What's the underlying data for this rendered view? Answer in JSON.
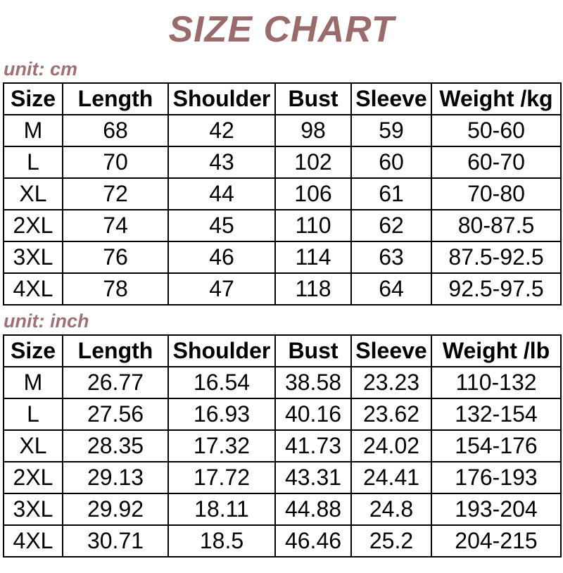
{
  "page": {
    "title": "SIZE CHART",
    "colors": {
      "accent_title": "#996b6b",
      "accent_label": "#9e7274",
      "table_text": "#000000",
      "border": "#000000",
      "background": "#ffffff"
    }
  },
  "chart_data": [
    {
      "type": "table",
      "title": "unit: cm",
      "columns": [
        "Size",
        "Length",
        "Shoulder",
        "Bust",
        "Sleeve",
        "Weight /kg"
      ],
      "rows": [
        [
          "M",
          "68",
          "42",
          "98",
          "59",
          "50-60"
        ],
        [
          "L",
          "70",
          "43",
          "102",
          "60",
          "60-70"
        ],
        [
          "XL",
          "72",
          "44",
          "106",
          "61",
          "70-80"
        ],
        [
          "2XL",
          "74",
          "45",
          "110",
          "62",
          "80-87.5"
        ],
        [
          "3XL",
          "76",
          "46",
          "114",
          "63",
          "87.5-92.5"
        ],
        [
          "4XL",
          "78",
          "47",
          "118",
          "64",
          "92.5-97.5"
        ]
      ]
    },
    {
      "type": "table",
      "title": "unit: inch",
      "columns": [
        "Size",
        "Length",
        "Shoulder",
        "Bust",
        "Sleeve",
        "Weight /lb"
      ],
      "rows": [
        [
          "M",
          "26.77",
          "16.54",
          "38.58",
          "23.23",
          "110-132"
        ],
        [
          "L",
          "27.56",
          "16.93",
          "40.16",
          "23.62",
          "132-154"
        ],
        [
          "XL",
          "28.35",
          "17.32",
          "41.73",
          "24.02",
          "154-176"
        ],
        [
          "2XL",
          "29.13",
          "17.72",
          "43.31",
          "24.41",
          "176-193"
        ],
        [
          "3XL",
          "29.92",
          "18.11",
          "44.88",
          "24.8",
          "193-204"
        ],
        [
          "4XL",
          "30.71",
          "18.5",
          "46.46",
          "25.2",
          "204-215"
        ]
      ]
    }
  ]
}
